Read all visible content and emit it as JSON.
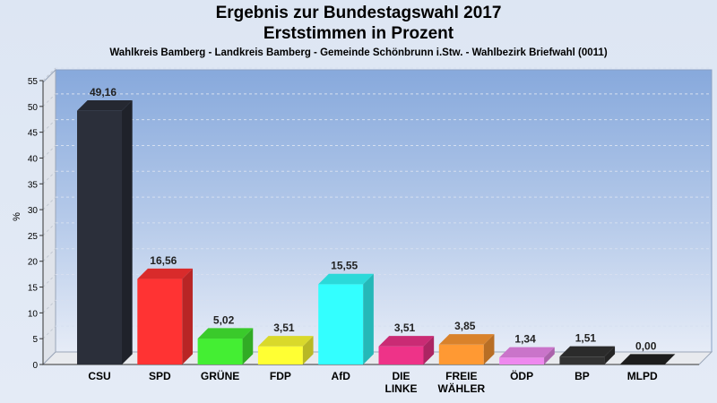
{
  "chart_data": {
    "type": "bar",
    "title": "Ergebnis zur Bundestagswahl 2017",
    "subtitle": "Erststimmen in Prozent",
    "caption": "Wahlkreis Bamberg - Landkreis Bamberg - Gemeinde Schönbrunn i.Stw. - Wahlbezirk Briefwahl (0011)",
    "ylabel": "%",
    "xlabel": "",
    "ylim": [
      0,
      55
    ],
    "yticks": [
      0,
      5,
      10,
      15,
      20,
      25,
      30,
      35,
      40,
      45,
      50,
      55
    ],
    "grid": true,
    "categories": [
      "CSU",
      "SPD",
      "GRÜNE",
      "FDP",
      "AfD",
      "DIE LINKE",
      "FREIE WÄHLER",
      "ÖDP",
      "BP",
      "MLPD"
    ],
    "category_lines": [
      [
        "CSU"
      ],
      [
        "SPD"
      ],
      [
        "GRÜNE"
      ],
      [
        "FDP"
      ],
      [
        "AfD"
      ],
      [
        "DIE",
        "LINKE"
      ],
      [
        "FREIE",
        "WÄHLER"
      ],
      [
        "ÖDP"
      ],
      [
        "BP"
      ],
      [
        "MLPD"
      ]
    ],
    "values": [
      49.16,
      16.56,
      5.02,
      3.51,
      15.55,
      3.51,
      3.85,
      1.34,
      1.51,
      0.0
    ],
    "value_labels": [
      "49,16",
      "16,56",
      "5,02",
      "3,51",
      "15,55",
      "3,51",
      "3,85",
      "1,34",
      "1,51",
      "0,00"
    ],
    "colors": [
      "#2b2f3a",
      "#ff3333",
      "#44ee33",
      "#ffff33",
      "#33ffff",
      "#ee3388",
      "#ff9933",
      "#ee88ee",
      "#333333",
      "#222222"
    ]
  }
}
